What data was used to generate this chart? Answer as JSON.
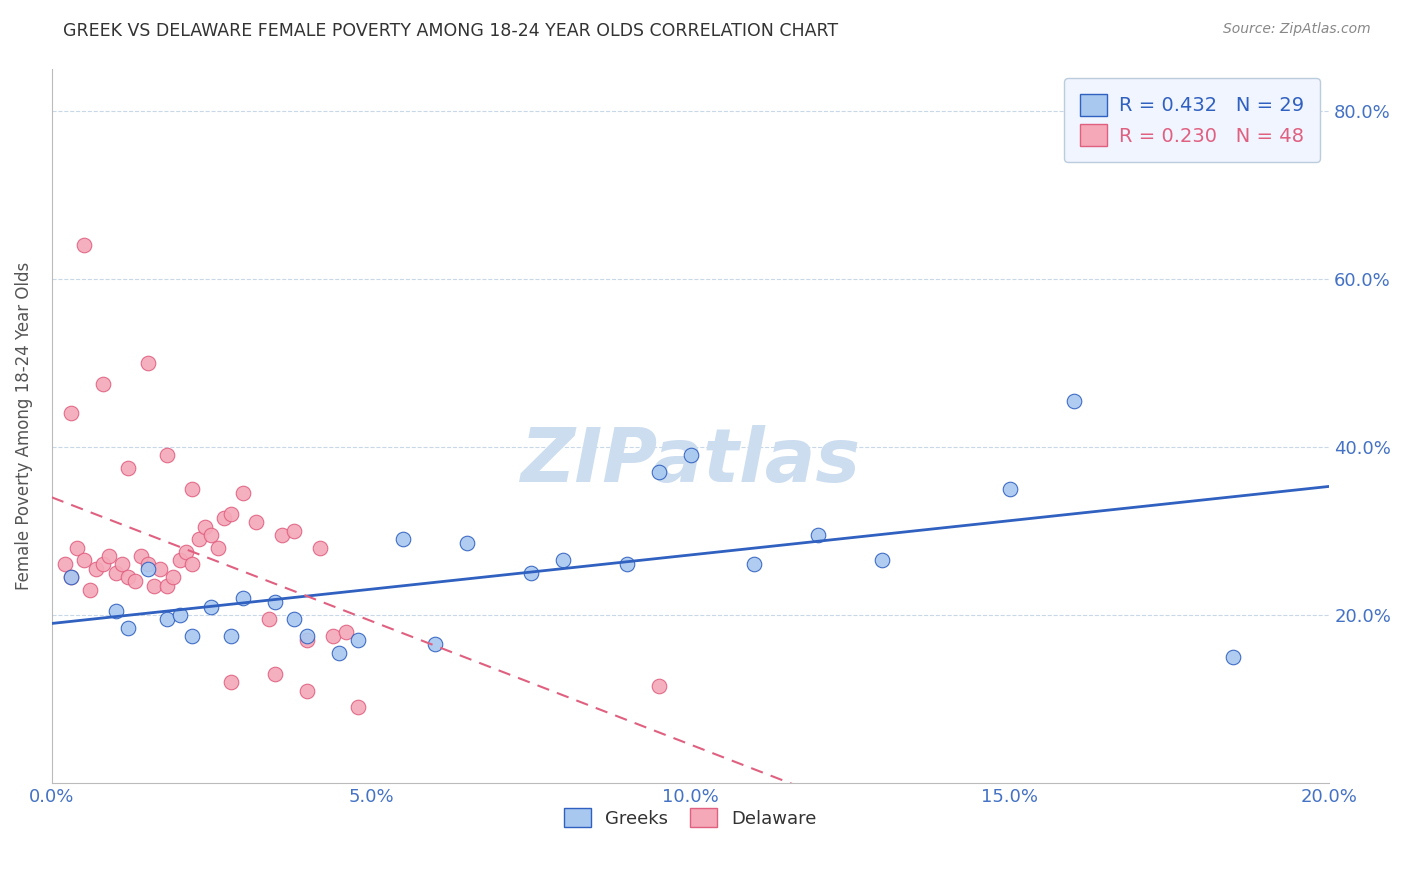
{
  "title": "GREEK VS DELAWARE FEMALE POVERTY AMONG 18-24 YEAR OLDS CORRELATION CHART",
  "source": "Source: ZipAtlas.com",
  "ylabel": "Female Poverty Among 18-24 Year Olds",
  "xlabel": "",
  "xlim": [
    0.0,
    0.2
  ],
  "ylim": [
    0.0,
    0.85
  ],
  "yticks": [
    0.2,
    0.4,
    0.6,
    0.8
  ],
  "xticks": [
    0.0,
    0.05,
    0.1,
    0.15,
    0.2
  ],
  "background_color": "#ffffff",
  "grid_color": "#c8d8e8",
  "title_color": "#333333",
  "axis_tick_color": "#4472c4",
  "greeks_color": "#a8c8f0",
  "delaware_color": "#f4a8b8",
  "greeks_line_color": "#3060c0",
  "delaware_line_color": "#e06080",
  "greeks_R": 0.432,
  "greeks_N": 29,
  "delaware_R": 0.23,
  "delaware_N": 48,
  "greeks_scatter_x": [
    0.003,
    0.01,
    0.012,
    0.015,
    0.018,
    0.02,
    0.022,
    0.025,
    0.028,
    0.03,
    0.035,
    0.038,
    0.04,
    0.045,
    0.048,
    0.055,
    0.06,
    0.065,
    0.075,
    0.08,
    0.09,
    0.095,
    0.1,
    0.11,
    0.12,
    0.13,
    0.15,
    0.16,
    0.185
  ],
  "greeks_scatter_y": [
    0.245,
    0.205,
    0.185,
    0.255,
    0.195,
    0.2,
    0.175,
    0.21,
    0.175,
    0.22,
    0.215,
    0.195,
    0.175,
    0.155,
    0.17,
    0.29,
    0.165,
    0.285,
    0.25,
    0.265,
    0.26,
    0.37,
    0.39,
    0.26,
    0.295,
    0.265,
    0.35,
    0.455,
    0.15
  ],
  "delaware_scatter_x": [
    0.002,
    0.003,
    0.004,
    0.005,
    0.006,
    0.007,
    0.008,
    0.009,
    0.01,
    0.011,
    0.012,
    0.013,
    0.014,
    0.015,
    0.016,
    0.017,
    0.018,
    0.019,
    0.02,
    0.021,
    0.022,
    0.023,
    0.024,
    0.025,
    0.026,
    0.027,
    0.028,
    0.03,
    0.032,
    0.034,
    0.036,
    0.038,
    0.04,
    0.042,
    0.044,
    0.046,
    0.003,
    0.005,
    0.008,
    0.012,
    0.015,
    0.018,
    0.022,
    0.028,
    0.035,
    0.04,
    0.048,
    0.095
  ],
  "delaware_scatter_y": [
    0.26,
    0.245,
    0.28,
    0.265,
    0.23,
    0.255,
    0.26,
    0.27,
    0.25,
    0.26,
    0.245,
    0.24,
    0.27,
    0.26,
    0.235,
    0.255,
    0.235,
    0.245,
    0.265,
    0.275,
    0.26,
    0.29,
    0.305,
    0.295,
    0.28,
    0.315,
    0.32,
    0.345,
    0.31,
    0.195,
    0.295,
    0.3,
    0.17,
    0.28,
    0.175,
    0.18,
    0.44,
    0.64,
    0.475,
    0.375,
    0.5,
    0.39,
    0.35,
    0.12,
    0.13,
    0.11,
    0.09,
    0.115
  ],
  "watermark_text": "ZIPatlas",
  "watermark_color": "#ccddf0",
  "marker_size": 110
}
